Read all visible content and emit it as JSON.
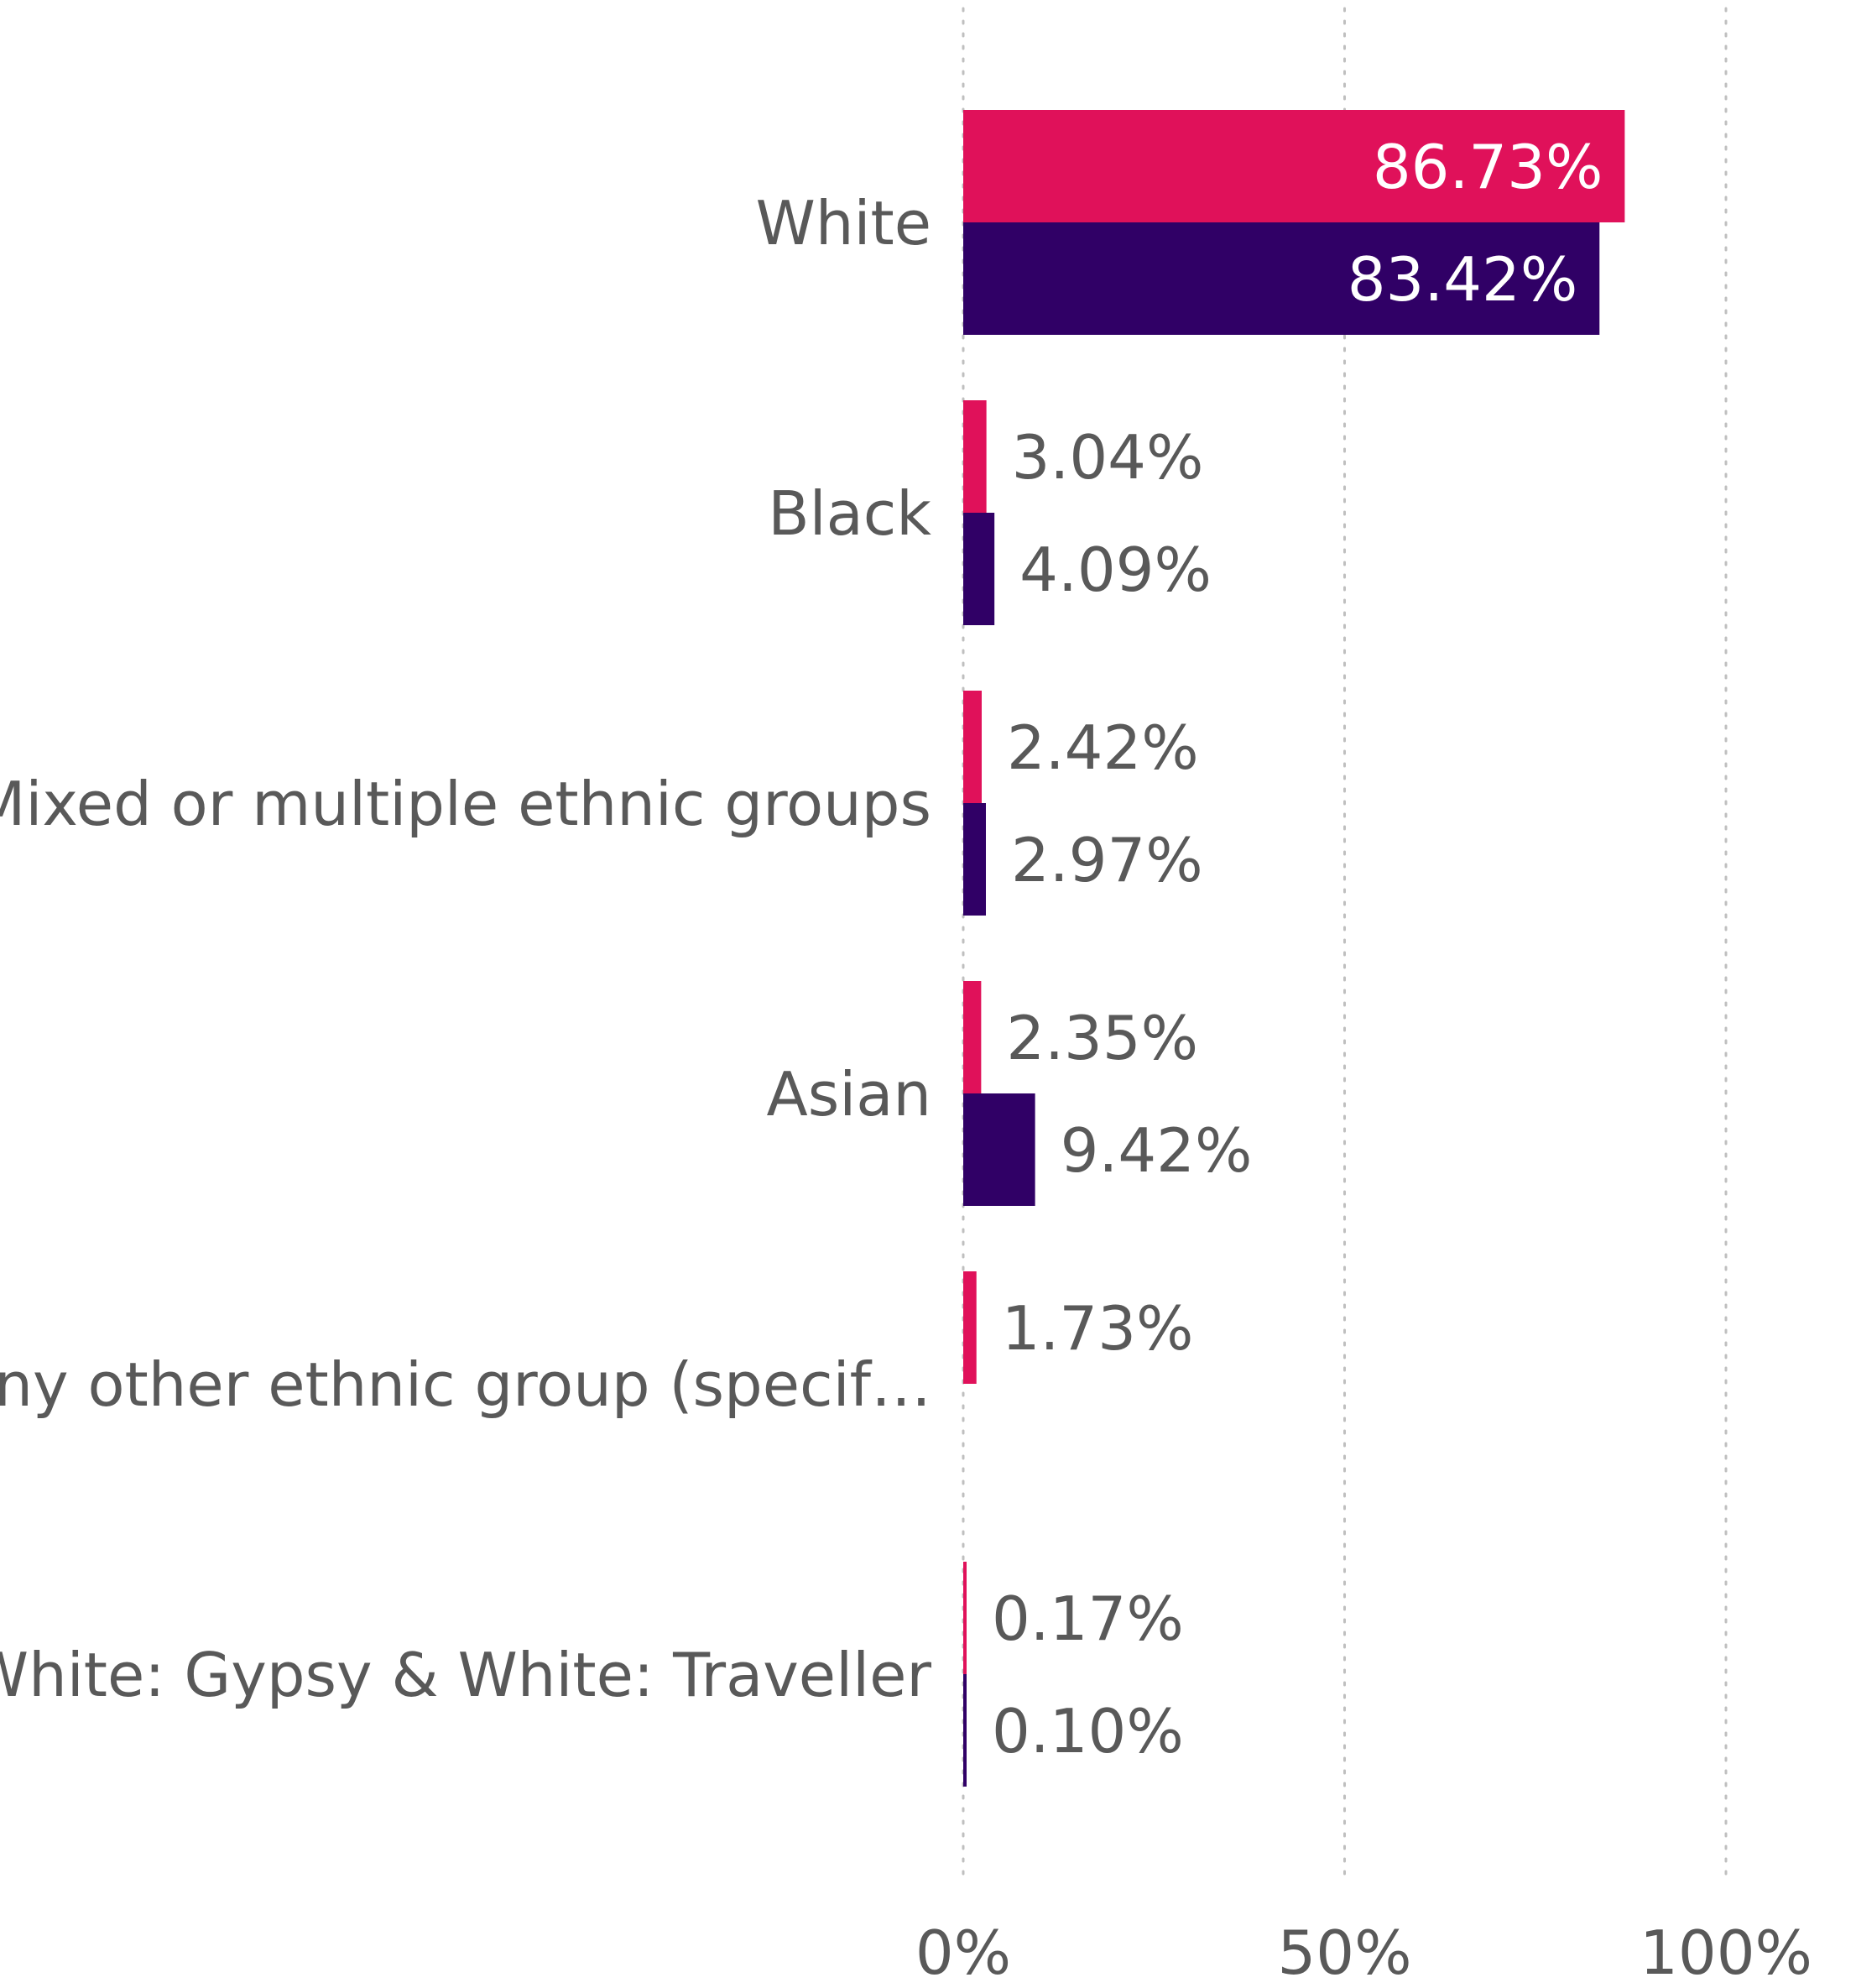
{
  "chart_data": {
    "type": "bar",
    "orientation": "horizontal",
    "categories": [
      "White",
      "Black",
      "Mixed or multiple ethnic groups",
      "Asian",
      "Any other ethnic group (specif…",
      "White: Gypsy & White: Traveller"
    ],
    "series": [
      {
        "color": "#e0115a",
        "values": [
          86.73,
          3.04,
          2.42,
          2.35,
          1.73,
          0.17
        ],
        "labels": [
          "86.73%",
          "3.04%",
          "2.42%",
          "2.35%",
          "1.73%",
          "0.17%"
        ]
      },
      {
        "color": "#300066",
        "values": [
          83.42,
          4.09,
          2.97,
          9.42,
          null,
          0.1
        ],
        "labels": [
          "83.42%",
          "4.09%",
          "2.97%",
          "9.42%",
          "",
          "0.10%"
        ]
      }
    ],
    "xlim": [
      0,
      100
    ],
    "x_ticks": [
      0,
      50,
      100
    ],
    "x_tick_labels": [
      "0%",
      "50%",
      "100%"
    ],
    "grid": true,
    "legend": "none"
  }
}
